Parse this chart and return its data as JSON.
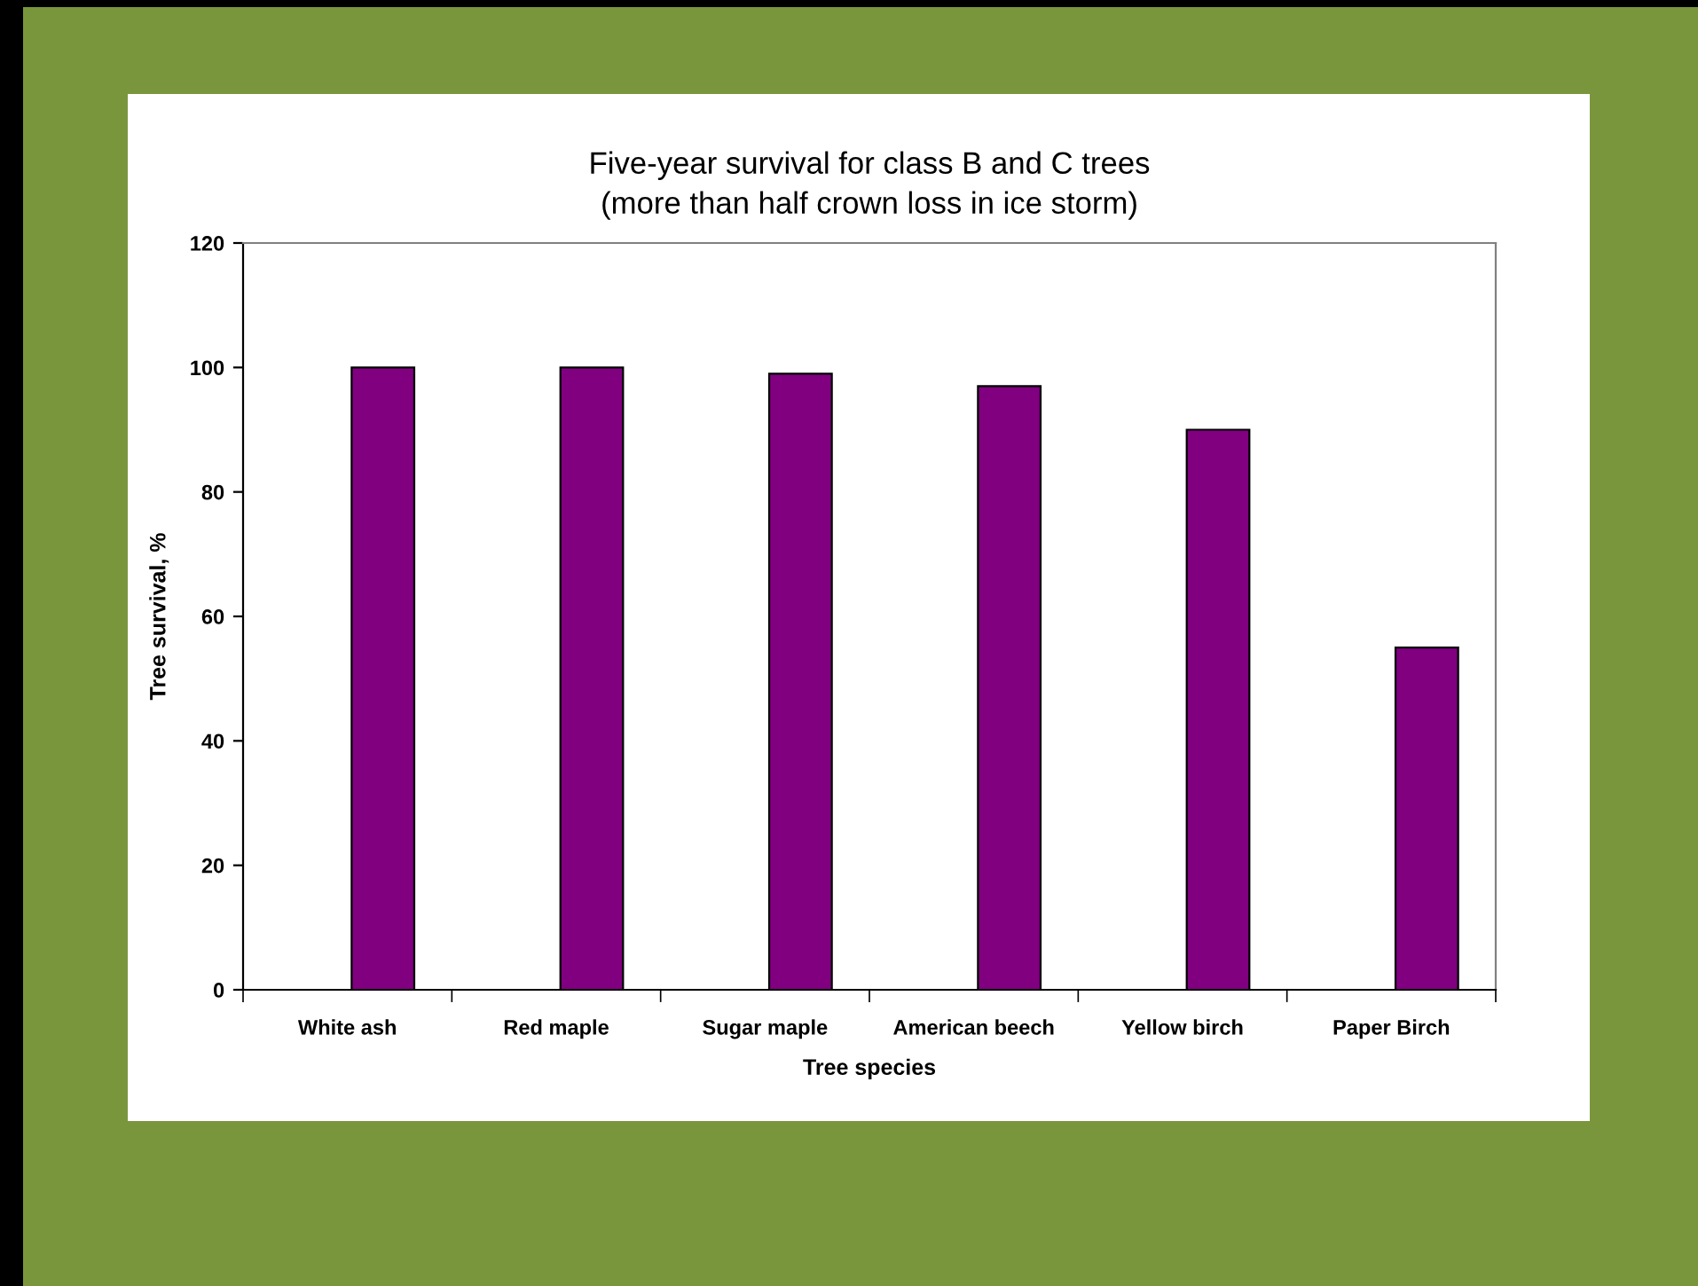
{
  "chart_data": {
    "type": "bar",
    "title": "Five-year survival for class B and C trees\n(more than half crown loss in ice storm)",
    "xlabel": "Tree species",
    "ylabel": "Tree survival, %",
    "categories": [
      "White ash",
      "Red maple",
      "Sugar maple",
      "American beech",
      "Yellow birch",
      "Paper Birch"
    ],
    "values": [
      100,
      100,
      99,
      97,
      90,
      55
    ],
    "color": "#800080",
    "ylim": [
      0,
      120
    ],
    "yticks": [
      0,
      20,
      40,
      60,
      80,
      100,
      120
    ],
    "grid": false,
    "legend": false
  }
}
